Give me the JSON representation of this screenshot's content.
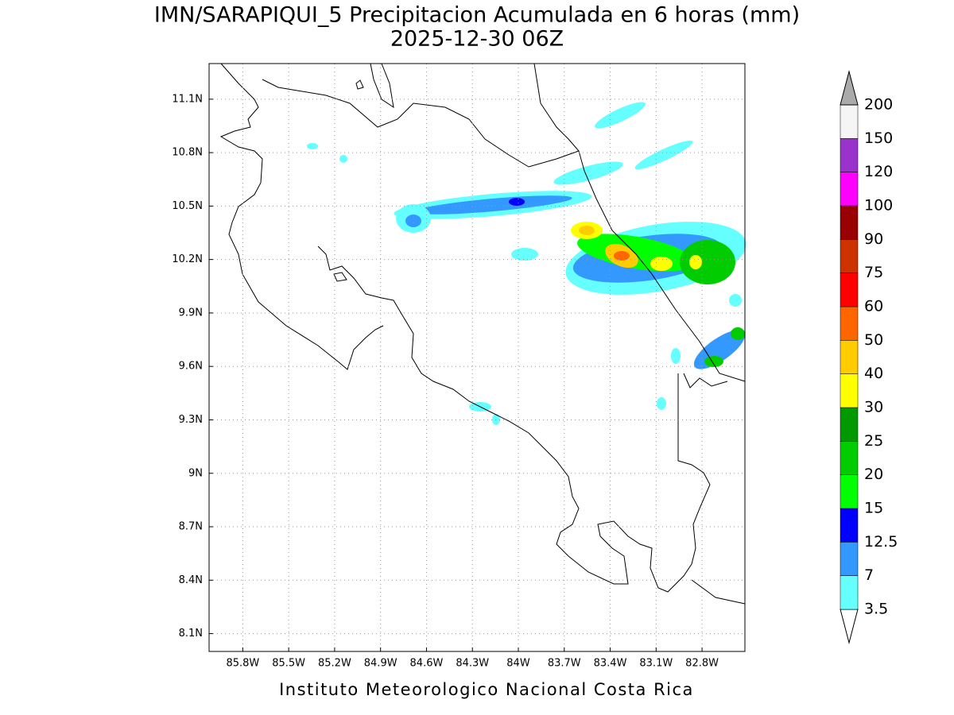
{
  "title": "IMN/SARAPIQUI_5 Precipitacion Acumulada en 6 horas (mm)",
  "subtitle": "2025-12-30 06Z",
  "footer": "Instituto Meteorologico Nacional Costa Rica",
  "map": {
    "xlim": [
      -86.02,
      -82.52
    ],
    "ylim": [
      8.0,
      11.3
    ],
    "grid": true,
    "xticks": [
      {
        "value": -85.8,
        "label": "85.8W"
      },
      {
        "value": -85.5,
        "label": "85.5W"
      },
      {
        "value": -85.2,
        "label": "85.2W"
      },
      {
        "value": -84.9,
        "label": "84.9W"
      },
      {
        "value": -84.6,
        "label": "84.6W"
      },
      {
        "value": -84.3,
        "label": "84.3W"
      },
      {
        "value": -84,
        "label": "84W"
      },
      {
        "value": -83.7,
        "label": "83.7W"
      },
      {
        "value": -83.4,
        "label": "83.4W"
      },
      {
        "value": -83.1,
        "label": "83.1W"
      },
      {
        "value": -82.8,
        "label": "82.8W"
      }
    ],
    "yticks": [
      {
        "value": 8.1,
        "label": "8.1N"
      },
      {
        "value": 8.4,
        "label": "8.4N"
      },
      {
        "value": 8.7,
        "label": "8.7N"
      },
      {
        "value": 9,
        "label": "9N"
      },
      {
        "value": 9.3,
        "label": "9.3N"
      },
      {
        "value": 9.6,
        "label": "9.6N"
      },
      {
        "value": 9.9,
        "label": "9.9N"
      },
      {
        "value": 10.2,
        "label": "10.2N"
      },
      {
        "value": 10.5,
        "label": "10.5N"
      },
      {
        "value": 10.8,
        "label": "10.8N"
      },
      {
        "value": 11.1,
        "label": "11.1N"
      }
    ]
  },
  "colorbar": {
    "levels": [
      3.5,
      7,
      12.5,
      15,
      20,
      25,
      30,
      40,
      50,
      60,
      75,
      90,
      100,
      120,
      150,
      200
    ],
    "colors": [
      "#66ffff",
      "#3399ff",
      "#0000ff",
      "#00ff00",
      "#00cc00",
      "#009900",
      "#ffff00",
      "#ffcc00",
      "#ff6600",
      "#ff0000",
      "#cc3300",
      "#990000",
      "#ff00ff",
      "#9933cc",
      "#f5f5f5"
    ],
    "under_color": "#ffffff",
    "over_color": "#aaaaaa"
  }
}
